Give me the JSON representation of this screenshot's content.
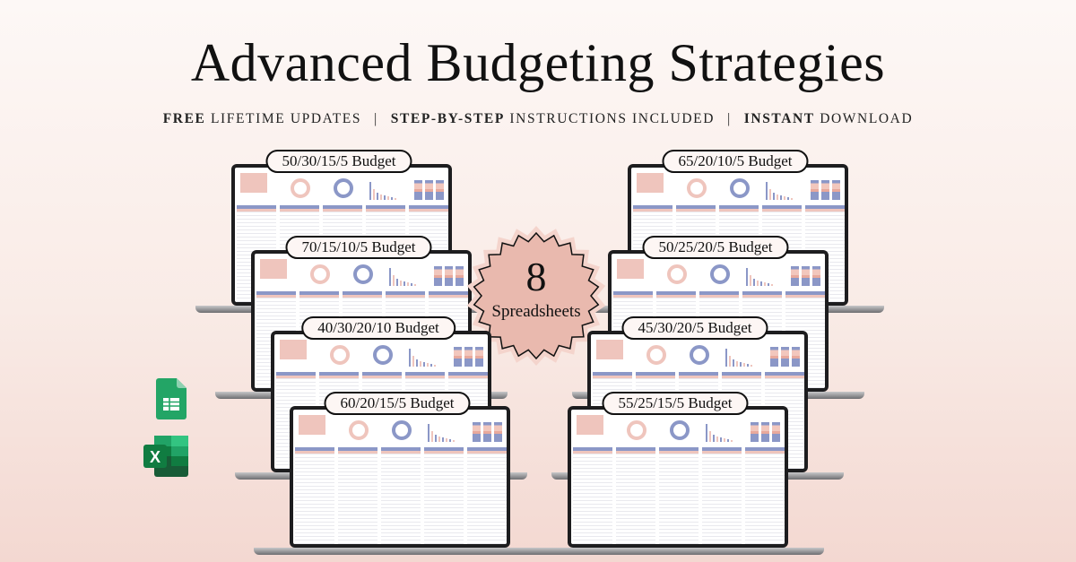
{
  "title": "Advanced Budgeting Strategies",
  "subtitle": {
    "part1_bold": "FREE",
    "part1": " LIFETIME UPDATES",
    "separator": "|",
    "part2_bold": "STEP-BY-STEP",
    "part2": " INSTRUCTIONS INCLUDED",
    "part3_bold": "INSTANT",
    "part3": " DOWNLOAD"
  },
  "badge": {
    "number": "8",
    "text": "Spreadsheets"
  },
  "spreadsheets": [
    {
      "label": "50/30/15/5 Budget"
    },
    {
      "label": "70/15/10/5 Budget"
    },
    {
      "label": "40/30/20/10 Budget"
    },
    {
      "label": "60/20/15/5 Budget"
    },
    {
      "label": "65/20/10/5 Budget"
    },
    {
      "label": "50/25/20/5 Budget"
    },
    {
      "label": "45/30/20/5 Budget"
    },
    {
      "label": "55/25/15/5 Budget"
    }
  ],
  "icons": [
    "google-sheets-icon",
    "excel-icon"
  ],
  "colors": {
    "accent_pink": "#efc5bd",
    "accent_blue": "#8b97c7",
    "badge": "#e9b9ae"
  }
}
